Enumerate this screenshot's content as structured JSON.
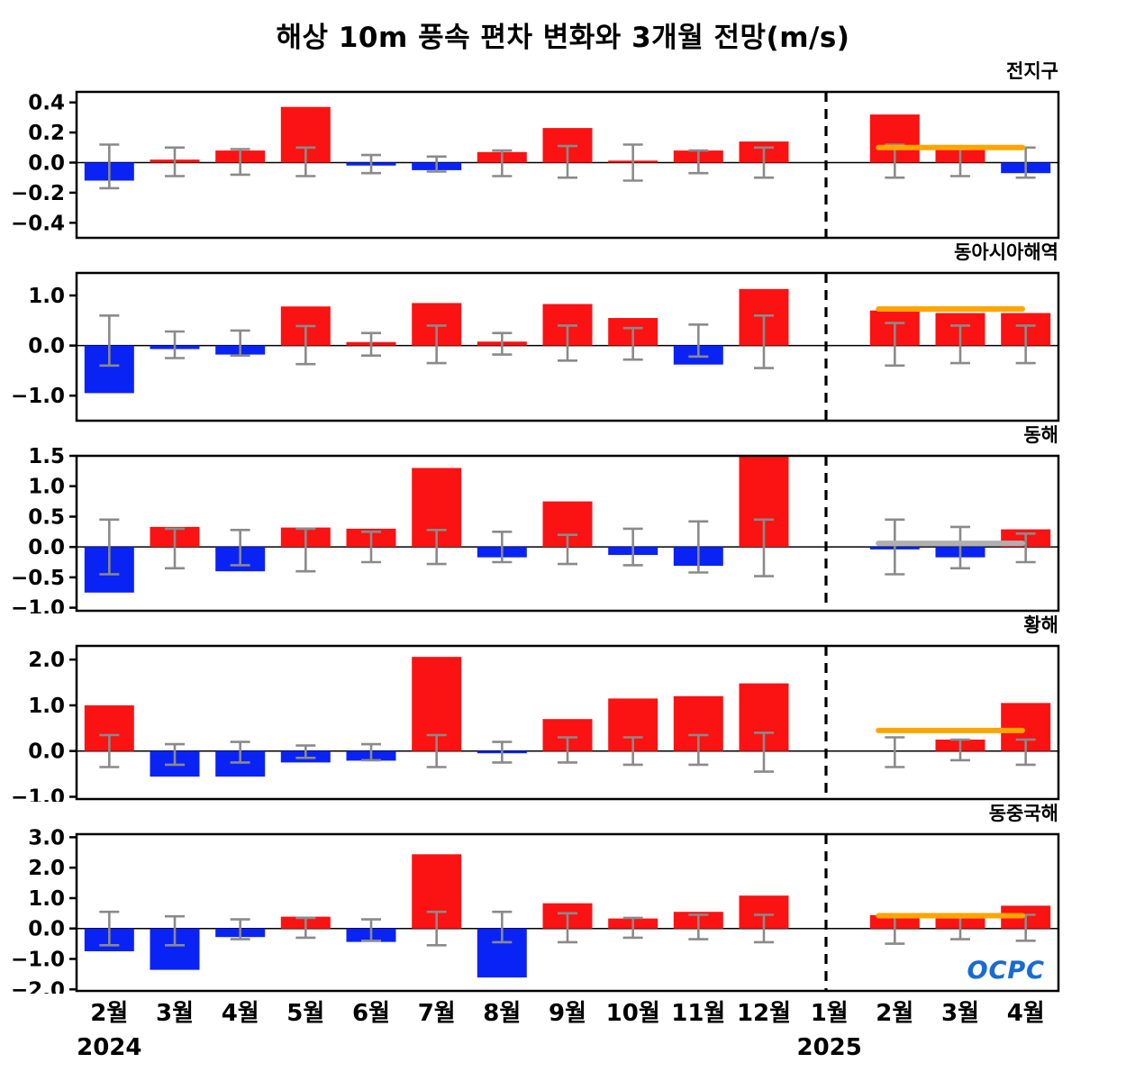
{
  "title": "해상 10m 풍속 편차 변화와 3개월 전망(m/s)",
  "logo_text": "OCPC",
  "chart_data": {
    "type": "bar",
    "title": "해상 10m 풍속 편차 변화와 3개월 전망(m/s)",
    "unit": "m/s",
    "x_categories": [
      "2월",
      "3월",
      "4월",
      "5월",
      "6월",
      "7월",
      "8월",
      "9월",
      "10월",
      "11월",
      "12월",
      "1월",
      "2월",
      "3월",
      "4월"
    ],
    "year_labels": [
      {
        "text": "2024",
        "at_index": 0
      },
      {
        "text": "2025",
        "at_index": 11
      }
    ],
    "divider_index": 11.45,
    "forecast_span": {
      "from_index": 12.25,
      "to_index": 14.45
    },
    "colors": {
      "positive": "#fb1212",
      "negative": "#0a23f5",
      "error": "#8a8a8a",
      "forecast_orange": "#FFA500",
      "forecast_gray": "#b0b0b0",
      "axis": "#000000"
    },
    "panels": [
      {
        "label": "전지구",
        "ymin": -0.5,
        "ymax": 0.47,
        "yticks": [
          0.4,
          0.2,
          0.0,
          -0.2,
          -0.4
        ],
        "values": [
          -0.12,
          0.02,
          0.08,
          0.37,
          -0.02,
          -0.05,
          0.07,
          0.23,
          0.01,
          0.08,
          0.14,
          0.0,
          0.32,
          0.1,
          -0.07
        ],
        "errors": [
          [
            -0.17,
            0.12
          ],
          [
            -0.09,
            0.1
          ],
          [
            -0.08,
            0.09
          ],
          [
            -0.09,
            0.1
          ],
          [
            -0.07,
            0.05
          ],
          [
            -0.06,
            0.04
          ],
          [
            -0.09,
            0.08
          ],
          [
            -0.1,
            0.11
          ],
          [
            -0.12,
            0.12
          ],
          [
            -0.07,
            0.08
          ],
          [
            -0.1,
            0.1
          ],
          null,
          [
            -0.1,
            0.12
          ],
          [
            -0.09,
            0.09
          ],
          [
            -0.1,
            0.1
          ]
        ],
        "forecast_line": {
          "value": 0.1,
          "color": "#FFA500"
        }
      },
      {
        "label": "동아시아해역",
        "ymin": -1.5,
        "ymax": 1.45,
        "yticks": [
          1.0,
          0.0,
          -1.0
        ],
        "values": [
          -0.95,
          -0.07,
          -0.18,
          0.78,
          0.07,
          0.85,
          0.08,
          0.83,
          0.55,
          -0.38,
          1.13,
          0.0,
          0.7,
          0.65,
          0.65
        ],
        "errors": [
          [
            -0.4,
            0.6
          ],
          [
            -0.25,
            0.28
          ],
          [
            -0.2,
            0.3
          ],
          [
            -0.37,
            0.39
          ],
          [
            -0.2,
            0.25
          ],
          [
            -0.35,
            0.4
          ],
          [
            -0.18,
            0.25
          ],
          [
            -0.3,
            0.4
          ],
          [
            -0.28,
            0.35
          ],
          [
            -0.22,
            0.42
          ],
          [
            -0.45,
            0.6
          ],
          null,
          [
            -0.4,
            0.45
          ],
          [
            -0.35,
            0.4
          ],
          [
            -0.35,
            0.4
          ]
        ],
        "forecast_line": {
          "value": 0.73,
          "color": "#FFA500"
        }
      },
      {
        "label": "동해",
        "ymin": -1.05,
        "ymax": 1.5,
        "yticks": [
          1.5,
          1.0,
          0.5,
          0.0,
          -0.5,
          -1.0
        ],
        "values": [
          -0.75,
          0.33,
          -0.4,
          0.32,
          0.3,
          1.3,
          -0.17,
          0.75,
          -0.13,
          -0.31,
          1.5,
          0.0,
          -0.04,
          -0.17,
          0.29
        ],
        "errors": [
          [
            -0.45,
            0.45
          ],
          [
            -0.35,
            0.3
          ],
          [
            -0.3,
            0.28
          ],
          [
            -0.4,
            0.3
          ],
          [
            -0.25,
            0.25
          ],
          [
            -0.28,
            0.28
          ],
          [
            -0.25,
            0.25
          ],
          [
            -0.28,
            0.2
          ],
          [
            -0.3,
            0.3
          ],
          [
            -0.42,
            0.42
          ],
          [
            -0.48,
            0.45
          ],
          null,
          [
            -0.45,
            0.45
          ],
          [
            -0.35,
            0.33
          ],
          [
            -0.25,
            0.22
          ]
        ],
        "forecast_line": {
          "value": 0.06,
          "color": "#b0b0b0"
        }
      },
      {
        "label": "황해",
        "ymin": -1.05,
        "ymax": 2.3,
        "yticks": [
          2.0,
          1.0,
          0.0,
          -1.0
        ],
        "values": [
          1.0,
          -0.56,
          -0.56,
          -0.25,
          -0.21,
          2.06,
          -0.05,
          0.7,
          1.15,
          1.2,
          1.48,
          0.0,
          0.0,
          0.25,
          1.05
        ],
        "errors": [
          [
            -0.35,
            0.35
          ],
          [
            -0.3,
            0.15
          ],
          [
            -0.25,
            0.2
          ],
          [
            -0.15,
            0.12
          ],
          [
            -0.2,
            0.15
          ],
          [
            -0.35,
            0.35
          ],
          [
            -0.25,
            0.2
          ],
          [
            -0.25,
            0.3
          ],
          [
            -0.3,
            0.3
          ],
          [
            -0.3,
            0.35
          ],
          [
            -0.45,
            0.4
          ],
          null,
          [
            -0.35,
            0.3
          ],
          [
            -0.2,
            0.25
          ],
          [
            -0.3,
            0.25
          ]
        ],
        "forecast_line": {
          "value": 0.45,
          "color": "#FFA500"
        }
      },
      {
        "label": "동중국해",
        "ymin": -2.05,
        "ymax": 3.1,
        "yticks": [
          3.0,
          2.0,
          1.0,
          0.0,
          -1.0,
          -2.0
        ],
        "values": [
          -0.75,
          -1.36,
          -0.28,
          0.39,
          -0.44,
          2.44,
          -1.61,
          0.83,
          0.33,
          0.55,
          1.08,
          0.0,
          0.44,
          0.33,
          0.75
        ],
        "errors": [
          [
            -0.55,
            0.55
          ],
          [
            -0.55,
            0.4
          ],
          [
            -0.35,
            0.3
          ],
          [
            -0.3,
            0.35
          ],
          [
            -0.4,
            0.3
          ],
          [
            -0.55,
            0.55
          ],
          [
            -0.45,
            0.55
          ],
          [
            -0.45,
            0.5
          ],
          [
            -0.3,
            0.35
          ],
          [
            -0.35,
            0.45
          ],
          [
            -0.45,
            0.45
          ],
          null,
          [
            -0.5,
            0.45
          ],
          [
            -0.35,
            0.4
          ],
          [
            -0.4,
            0.45
          ]
        ],
        "forecast_line": {
          "value": 0.42,
          "color": "#FFA500"
        }
      }
    ]
  }
}
